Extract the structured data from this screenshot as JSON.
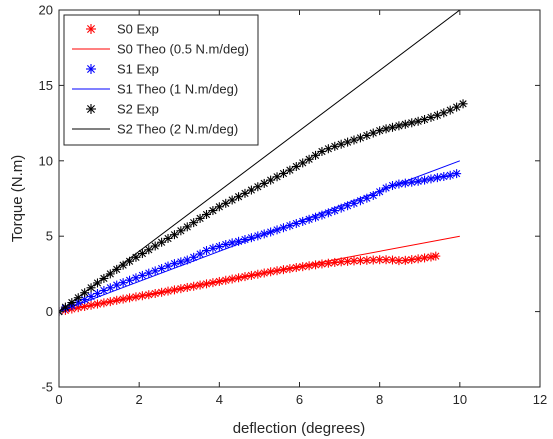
{
  "chart_data": {
    "type": "scatter",
    "title": "",
    "xlabel": "deflection (degrees)",
    "ylabel": "Torque (N.m)",
    "xlim": [
      0,
      12
    ],
    "ylim": [
      -5,
      20
    ],
    "xticks": [
      "0",
      "2",
      "4",
      "6",
      "8",
      "10",
      "12"
    ],
    "yticks": [
      "-5",
      "0",
      "5",
      "10",
      "15",
      "20"
    ],
    "grid": false,
    "legend_position": "top-left",
    "series": [
      {
        "name": "S0 Exp",
        "kind": "marker",
        "marker": "asterisk",
        "color": "#ff0000",
        "x": [
          0,
          0.16,
          0.32,
          0.48,
          0.64,
          0.8,
          0.96,
          1.12,
          1.28,
          1.44,
          1.6,
          1.76,
          1.92,
          2.08,
          2.24,
          2.4,
          2.56,
          2.72,
          2.88,
          3.04,
          3.2,
          3.36,
          3.52,
          3.68,
          3.84,
          4.0,
          4.16,
          4.32,
          4.48,
          4.64,
          4.8,
          4.96,
          5.12,
          5.28,
          5.44,
          5.6,
          5.76,
          5.92,
          6.08,
          6.24,
          6.4,
          6.56,
          6.72,
          6.88,
          7.04,
          7.2,
          7.36,
          7.52,
          7.68,
          7.84,
          8.0,
          8.16,
          8.32,
          8.48,
          8.64,
          8.8,
          8.96,
          9.12,
          9.28,
          9.4
        ],
        "y": [
          0,
          0.08,
          0.17,
          0.26,
          0.34,
          0.42,
          0.5,
          0.58,
          0.66,
          0.75,
          0.83,
          0.91,
          0.98,
          1.05,
          1.12,
          1.2,
          1.28,
          1.36,
          1.44,
          1.52,
          1.6,
          1.68,
          1.76,
          1.84,
          1.92,
          2.0,
          2.08,
          2.16,
          2.24,
          2.32,
          2.4,
          2.48,
          2.56,
          2.64,
          2.71,
          2.78,
          2.85,
          2.92,
          2.98,
          3.04,
          3.1,
          3.16,
          3.21,
          3.26,
          3.3,
          3.33,
          3.36,
          3.38,
          3.4,
          3.42,
          3.44,
          3.44,
          3.42,
          3.38,
          3.4,
          3.45,
          3.5,
          3.56,
          3.62,
          3.68
        ]
      },
      {
        "name": "S0 Theo (0.5 N.m/deg)",
        "kind": "line",
        "color": "#ff0000",
        "x": [
          0,
          10
        ],
        "y": [
          0,
          5
        ]
      },
      {
        "name": "S1 Exp",
        "kind": "marker",
        "marker": "asterisk",
        "color": "#0000ff",
        "x": [
          0,
          0.16,
          0.32,
          0.48,
          0.64,
          0.8,
          0.96,
          1.12,
          1.28,
          1.44,
          1.6,
          1.76,
          1.92,
          2.08,
          2.24,
          2.4,
          2.56,
          2.72,
          2.88,
          3.04,
          3.2,
          3.36,
          3.52,
          3.68,
          3.84,
          4.0,
          4.16,
          4.32,
          4.48,
          4.64,
          4.8,
          4.96,
          5.12,
          5.28,
          5.44,
          5.6,
          5.76,
          5.92,
          6.08,
          6.24,
          6.4,
          6.56,
          6.72,
          6.88,
          7.04,
          7.2,
          7.36,
          7.52,
          7.68,
          7.84,
          8.0,
          8.16,
          8.32,
          8.48,
          8.64,
          8.8,
          8.96,
          9.12,
          9.28,
          9.44,
          9.6,
          9.76,
          9.92
        ],
        "y": [
          0,
          0.22,
          0.4,
          0.62,
          0.8,
          1.0,
          1.2,
          1.4,
          1.58,
          1.76,
          1.92,
          2.08,
          2.24,
          2.4,
          2.55,
          2.7,
          2.86,
          3.02,
          3.18,
          3.3,
          3.42,
          3.6,
          3.82,
          4.05,
          4.2,
          4.32,
          4.45,
          4.56,
          4.66,
          4.78,
          4.9,
          5.02,
          5.15,
          5.28,
          5.42,
          5.56,
          5.7,
          5.84,
          5.98,
          6.12,
          6.26,
          6.4,
          6.55,
          6.7,
          6.86,
          7.02,
          7.18,
          7.35,
          7.52,
          7.7,
          7.95,
          8.2,
          8.36,
          8.46,
          8.52,
          8.58,
          8.64,
          8.72,
          8.8,
          8.88,
          8.96,
          9.04,
          9.15
        ]
      },
      {
        "name": "S1 Theo (1 N.m/deg)",
        "kind": "line",
        "color": "#0000ff",
        "x": [
          0,
          10
        ],
        "y": [
          0,
          10
        ]
      },
      {
        "name": "S2 Exp",
        "kind": "marker",
        "marker": "asterisk",
        "color": "#000000",
        "x": [
          0,
          0.16,
          0.32,
          0.48,
          0.64,
          0.8,
          0.96,
          1.12,
          1.28,
          1.44,
          1.6,
          1.76,
          1.92,
          2.08,
          2.24,
          2.4,
          2.56,
          2.72,
          2.88,
          3.04,
          3.2,
          3.36,
          3.52,
          3.68,
          3.84,
          4.0,
          4.16,
          4.32,
          4.48,
          4.64,
          4.8,
          4.96,
          5.12,
          5.28,
          5.44,
          5.6,
          5.76,
          5.92,
          6.08,
          6.24,
          6.4,
          6.56,
          6.72,
          6.88,
          7.04,
          7.2,
          7.36,
          7.52,
          7.68,
          7.84,
          8.0,
          8.16,
          8.32,
          8.48,
          8.64,
          8.8,
          8.96,
          9.12,
          9.28,
          9.44,
          9.6,
          9.76,
          9.92,
          10.08
        ],
        "y": [
          0,
          0.3,
          0.6,
          0.92,
          1.25,
          1.58,
          1.9,
          2.2,
          2.5,
          2.8,
          3.08,
          3.34,
          3.6,
          3.85,
          4.1,
          4.35,
          4.6,
          4.85,
          5.1,
          5.36,
          5.62,
          5.9,
          6.18,
          6.44,
          6.7,
          6.95,
          7.18,
          7.4,
          7.62,
          7.84,
          8.06,
          8.28,
          8.5,
          8.72,
          8.94,
          9.16,
          9.38,
          9.62,
          9.86,
          10.1,
          10.36,
          10.62,
          10.8,
          10.96,
          11.1,
          11.24,
          11.38,
          11.52,
          11.68,
          11.84,
          12.0,
          12.12,
          12.22,
          12.32,
          12.42,
          12.52,
          12.62,
          12.74,
          12.88,
          13.02,
          13.18,
          13.36,
          13.56,
          13.78
        ]
      },
      {
        "name": "S2 Theo (2 N.m/deg)",
        "kind": "line",
        "color": "#000000",
        "x": [
          0,
          10
        ],
        "y": [
          0,
          20
        ]
      }
    ]
  }
}
